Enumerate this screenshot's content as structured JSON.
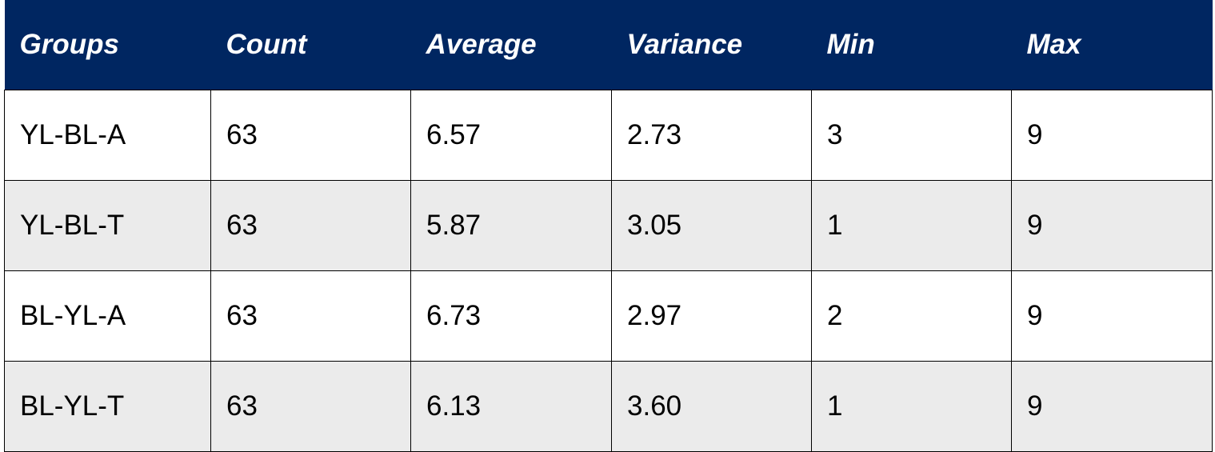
{
  "table": {
    "header": [
      "Groups",
      "Count",
      "Average",
      "Variance",
      "Min",
      "Max"
    ],
    "rows": [
      [
        "YL-BL-A",
        "63",
        "6.57",
        "2.73",
        "3",
        "9"
      ],
      [
        "YL-BL-T",
        "63",
        "5.87",
        "3.05",
        "1",
        "9"
      ],
      [
        "BL-YL-A",
        "63",
        "6.73",
        "2.97",
        "2",
        "9"
      ],
      [
        "BL-YL-T",
        "63",
        "6.13",
        "3.60",
        "1",
        "9"
      ]
    ]
  }
}
